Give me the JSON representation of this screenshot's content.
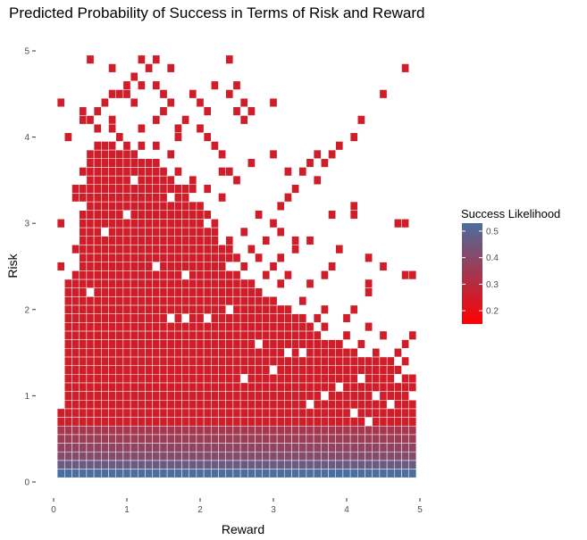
{
  "chart_data": {
    "type": "heatmap",
    "title": "Predicted Probability of Success in Terms of Risk and Reward",
    "xlabel": "Reward",
    "ylabel": "Risk",
    "xlim": [
      0,
      5
    ],
    "ylim": [
      0,
      5
    ],
    "x_ticks": [
      0,
      1,
      2,
      3,
      4,
      5
    ],
    "y_ticks": [
      0,
      1,
      2,
      3,
      4,
      5
    ],
    "cell_size": 0.1,
    "grid": false,
    "legend": {
      "title": "Success Likelihood",
      "position": "right",
      "min": 0.15,
      "max": 0.53,
      "ticks": [
        0.2,
        0.3,
        0.4,
        0.5
      ],
      "low_color": "#ff0000",
      "high_color": "#4a6e9e"
    },
    "bands": [
      {
        "risk": 0.1,
        "value": 0.53
      },
      {
        "risk": 0.2,
        "value": 0.46
      },
      {
        "risk": 0.3,
        "value": 0.41
      },
      {
        "risk": 0.4,
        "value": 0.38
      },
      {
        "risk": 0.5,
        "value": 0.36
      },
      {
        "risk": 0.6,
        "value": 0.34
      }
    ],
    "dense_region": [
      {
        "risk": 0.7,
        "reward_range": [
          0.1,
          4.9
        ]
      },
      {
        "risk": 0.8,
        "reward_range": [
          0.1,
          4.9
        ]
      },
      {
        "risk": 0.9,
        "reward_range": [
          0.2,
          4.9
        ]
      },
      {
        "risk": 1.0,
        "reward_range": [
          0.2,
          4.9
        ]
      },
      {
        "risk": 1.1,
        "reward_range": [
          0.2,
          4.9
        ]
      },
      {
        "risk": 1.2,
        "reward_range": [
          0.2,
          4.9
        ]
      },
      {
        "risk": 1.3,
        "reward_range": [
          0.2,
          4.7
        ]
      },
      {
        "risk": 1.4,
        "reward_range": [
          0.2,
          4.6
        ]
      },
      {
        "risk": 1.5,
        "reward_range": [
          0.2,
          4.1
        ]
      },
      {
        "risk": 1.6,
        "reward_range": [
          0.2,
          3.9
        ]
      },
      {
        "risk": 1.7,
        "reward_range": [
          0.2,
          3.6
        ]
      },
      {
        "risk": 1.8,
        "reward_range": [
          0.2,
          3.5
        ]
      },
      {
        "risk": 1.9,
        "reward_range": [
          0.2,
          3.4
        ]
      },
      {
        "risk": 2.0,
        "reward_range": [
          0.2,
          3.2
        ]
      },
      {
        "risk": 2.1,
        "reward_range": [
          0.2,
          3.0
        ]
      },
      {
        "risk": 2.2,
        "reward_range": [
          0.2,
          2.8
        ]
      },
      {
        "risk": 2.3,
        "reward_range": [
          0.2,
          2.6
        ]
      },
      {
        "risk": 2.4,
        "reward_range": [
          0.3,
          2.5
        ]
      },
      {
        "risk": 2.5,
        "reward_range": [
          0.4,
          2.3
        ]
      },
      {
        "risk": 2.6,
        "reward_range": [
          0.4,
          2.4
        ]
      },
      {
        "risk": 2.7,
        "reward_range": [
          0.3,
          2.4
        ]
      },
      {
        "risk": 2.8,
        "reward_range": [
          0.4,
          2.2
        ]
      },
      {
        "risk": 2.9,
        "reward_range": [
          0.4,
          2.2
        ]
      },
      {
        "risk": 3.0,
        "reward_range": [
          0.4,
          2.0
        ]
      },
      {
        "risk": 3.1,
        "reward_range": [
          0.4,
          2.1
        ]
      },
      {
        "risk": 3.2,
        "reward_range": [
          0.5,
          2.0
        ]
      },
      {
        "risk": 3.3,
        "reward_range": [
          0.3,
          1.8
        ]
      },
      {
        "risk": 3.4,
        "reward_range": [
          0.3,
          1.9
        ]
      },
      {
        "risk": 3.5,
        "reward_range": [
          0.5,
          1.6
        ]
      },
      {
        "risk": 3.6,
        "reward_range": [
          0.4,
          1.5
        ]
      },
      {
        "risk": 3.7,
        "reward_range": [
          0.5,
          1.3
        ]
      },
      {
        "risk": 3.8,
        "reward_range": [
          0.5,
          1.1
        ]
      },
      {
        "risk": 3.9,
        "reward_range": [
          0.6,
          1.0
        ]
      }
    ],
    "sparse_cells": [
      {
        "x": 0.1,
        "y": 4.4
      },
      {
        "x": 0.2,
        "y": 4.0
      },
      {
        "x": 0.1,
        "y": 3.0
      },
      {
        "x": 0.1,
        "y": 2.5
      },
      {
        "x": 0.1,
        "y": 0.8
      },
      {
        "x": 0.5,
        "y": 4.9
      },
      {
        "x": 0.8,
        "y": 4.8
      },
      {
        "x": 1.2,
        "y": 4.9
      },
      {
        "x": 1.4,
        "y": 4.9
      },
      {
        "x": 1.6,
        "y": 4.8
      },
      {
        "x": 1.1,
        "y": 4.7
      },
      {
        "x": 1.3,
        "y": 4.8
      },
      {
        "x": 2.4,
        "y": 4.9
      },
      {
        "x": 4.8,
        "y": 4.8
      },
      {
        "x": 4.5,
        "y": 4.5
      },
      {
        "x": 1.0,
        "y": 4.6
      },
      {
        "x": 1.2,
        "y": 4.6
      },
      {
        "x": 1.4,
        "y": 4.6
      },
      {
        "x": 2.2,
        "y": 4.6
      },
      {
        "x": 2.5,
        "y": 4.6
      },
      {
        "x": 0.8,
        "y": 4.5
      },
      {
        "x": 0.9,
        "y": 4.5
      },
      {
        "x": 1.0,
        "y": 4.5
      },
      {
        "x": 1.5,
        "y": 4.5
      },
      {
        "x": 1.9,
        "y": 4.5
      },
      {
        "x": 2.4,
        "y": 4.5
      },
      {
        "x": 0.7,
        "y": 4.4
      },
      {
        "x": 1.1,
        "y": 4.4
      },
      {
        "x": 1.6,
        "y": 4.4
      },
      {
        "x": 2.0,
        "y": 4.4
      },
      {
        "x": 2.6,
        "y": 4.4
      },
      {
        "x": 3.0,
        "y": 4.4
      },
      {
        "x": 0.4,
        "y": 4.3
      },
      {
        "x": 0.6,
        "y": 4.3
      },
      {
        "x": 1.5,
        "y": 4.3
      },
      {
        "x": 2.1,
        "y": 4.3
      },
      {
        "x": 2.5,
        "y": 4.3
      },
      {
        "x": 2.7,
        "y": 4.3
      },
      {
        "x": 0.4,
        "y": 4.2
      },
      {
        "x": 0.5,
        "y": 4.2
      },
      {
        "x": 0.8,
        "y": 4.2
      },
      {
        "x": 1.4,
        "y": 4.2
      },
      {
        "x": 1.8,
        "y": 4.2
      },
      {
        "x": 2.6,
        "y": 4.2
      },
      {
        "x": 4.2,
        "y": 4.2
      },
      {
        "x": 0.6,
        "y": 4.1
      },
      {
        "x": 0.8,
        "y": 4.1
      },
      {
        "x": 1.2,
        "y": 4.1
      },
      {
        "x": 1.7,
        "y": 4.1
      },
      {
        "x": 2.0,
        "y": 4.1
      },
      {
        "x": 0.9,
        "y": 4.0
      },
      {
        "x": 1.7,
        "y": 4.0
      },
      {
        "x": 2.1,
        "y": 4.0
      },
      {
        "x": 4.1,
        "y": 4.0
      },
      {
        "x": 1.2,
        "y": 3.9
      },
      {
        "x": 1.4,
        "y": 3.9
      },
      {
        "x": 2.2,
        "y": 3.9
      },
      {
        "x": 3.9,
        "y": 3.9
      },
      {
        "x": 0.8,
        "y": 3.8
      },
      {
        "x": 1.6,
        "y": 3.8
      },
      {
        "x": 2.3,
        "y": 3.8
      },
      {
        "x": 3.0,
        "y": 3.8
      },
      {
        "x": 3.6,
        "y": 3.8
      },
      {
        "x": 3.8,
        "y": 3.8
      },
      {
        "x": 1.4,
        "y": 3.7
      },
      {
        "x": 2.7,
        "y": 3.7
      },
      {
        "x": 3.5,
        "y": 3.7
      },
      {
        "x": 3.7,
        "y": 3.7
      },
      {
        "x": 1.7,
        "y": 3.6
      },
      {
        "x": 2.3,
        "y": 3.6
      },
      {
        "x": 2.4,
        "y": 3.6
      },
      {
        "x": 3.2,
        "y": 3.6
      },
      {
        "x": 3.4,
        "y": 3.6
      },
      {
        "x": 1.9,
        "y": 3.5
      },
      {
        "x": 2.5,
        "y": 3.5
      },
      {
        "x": 3.6,
        "y": 3.5
      },
      {
        "x": 2.1,
        "y": 3.4
      },
      {
        "x": 3.3,
        "y": 3.4
      },
      {
        "x": 2.3,
        "y": 3.3
      },
      {
        "x": 3.2,
        "y": 3.3
      },
      {
        "x": 2.0,
        "y": 3.2
      },
      {
        "x": 3.1,
        "y": 3.2
      },
      {
        "x": 4.1,
        "y": 3.2
      },
      {
        "x": 2.8,
        "y": 3.1
      },
      {
        "x": 3.8,
        "y": 3.1
      },
      {
        "x": 4.1,
        "y": 3.1
      },
      {
        "x": 2.2,
        "y": 3.0
      },
      {
        "x": 3.0,
        "y": 3.0
      },
      {
        "x": 4.7,
        "y": 3.0
      },
      {
        "x": 4.8,
        "y": 3.0
      },
      {
        "x": 2.6,
        "y": 2.9
      },
      {
        "x": 3.1,
        "y": 2.9
      },
      {
        "x": 2.4,
        "y": 2.8
      },
      {
        "x": 2.9,
        "y": 2.8
      },
      {
        "x": 3.3,
        "y": 2.8
      },
      {
        "x": 3.5,
        "y": 2.8
      },
      {
        "x": 2.7,
        "y": 2.7
      },
      {
        "x": 3.3,
        "y": 2.7
      },
      {
        "x": 3.9,
        "y": 2.7
      },
      {
        "x": 2.5,
        "y": 2.6
      },
      {
        "x": 2.8,
        "y": 2.6
      },
      {
        "x": 3.1,
        "y": 2.6
      },
      {
        "x": 4.3,
        "y": 2.6
      },
      {
        "x": 2.6,
        "y": 2.5
      },
      {
        "x": 3.0,
        "y": 2.5
      },
      {
        "x": 3.8,
        "y": 2.5
      },
      {
        "x": 4.5,
        "y": 2.5
      },
      {
        "x": 2.9,
        "y": 2.4
      },
      {
        "x": 3.2,
        "y": 2.4
      },
      {
        "x": 3.7,
        "y": 2.4
      },
      {
        "x": 4.8,
        "y": 2.4
      },
      {
        "x": 4.9,
        "y": 2.4
      },
      {
        "x": 2.7,
        "y": 2.3
      },
      {
        "x": 3.1,
        "y": 2.3
      },
      {
        "x": 3.5,
        "y": 2.3
      },
      {
        "x": 4.3,
        "y": 2.3
      },
      {
        "x": 4.3,
        "y": 2.2
      },
      {
        "x": 3.4,
        "y": 2.1
      },
      {
        "x": 3.7,
        "y": 2.0
      },
      {
        "x": 4.1,
        "y": 2.0
      },
      {
        "x": 3.6,
        "y": 1.9
      },
      {
        "x": 4.0,
        "y": 1.9
      },
      {
        "x": 3.7,
        "y": 1.8
      },
      {
        "x": 4.3,
        "y": 1.8
      },
      {
        "x": 4.0,
        "y": 1.7
      },
      {
        "x": 4.5,
        "y": 1.7
      },
      {
        "x": 4.9,
        "y": 1.7
      },
      {
        "x": 4.2,
        "y": 1.6
      },
      {
        "x": 4.8,
        "y": 1.6
      },
      {
        "x": 4.4,
        "y": 1.5
      },
      {
        "x": 4.7,
        "y": 1.5
      },
      {
        "x": 4.5,
        "y": 1.4
      },
      {
        "x": 4.8,
        "y": 1.4
      }
    ],
    "gaps": [
      {
        "x": 0.3,
        "y": 2.6
      },
      {
        "x": 0.5,
        "y": 2.2
      },
      {
        "x": 0.7,
        "y": 2.9
      },
      {
        "x": 0.3,
        "y": 3.1
      },
      {
        "x": 1.8,
        "y": 2.4
      },
      {
        "x": 2.1,
        "y": 1.9
      },
      {
        "x": 1.8,
        "y": 1.9
      },
      {
        "x": 1.6,
        "y": 1.9
      },
      {
        "x": 2.8,
        "y": 1.6
      },
      {
        "x": 3.0,
        "y": 1.3
      },
      {
        "x": 3.4,
        "y": 1.5
      },
      {
        "x": 3.2,
        "y": 1.5
      },
      {
        "x": 2.4,
        "y": 2.0
      },
      {
        "x": 1.4,
        "y": 2.5
      },
      {
        "x": 1.0,
        "y": 3.1
      },
      {
        "x": 1.6,
        "y": 3.3
      },
      {
        "x": 1.1,
        "y": 3.5
      },
      {
        "x": 0.9,
        "y": 3.9
      },
      {
        "x": 3.9,
        "y": 1.1
      },
      {
        "x": 4.2,
        "y": 1.2
      },
      {
        "x": 3.7,
        "y": 1.0
      },
      {
        "x": 4.4,
        "y": 1.0
      },
      {
        "x": 4.6,
        "y": 0.9
      },
      {
        "x": 4.1,
        "y": 0.8
      },
      {
        "x": 4.3,
        "y": 0.7
      },
      {
        "x": 4.7,
        "y": 1.2
      },
      {
        "x": 4.9,
        "y": 1.0
      },
      {
        "x": 2.6,
        "y": 1.2
      },
      {
        "x": 3.5,
        "y": 0.9
      }
    ]
  }
}
